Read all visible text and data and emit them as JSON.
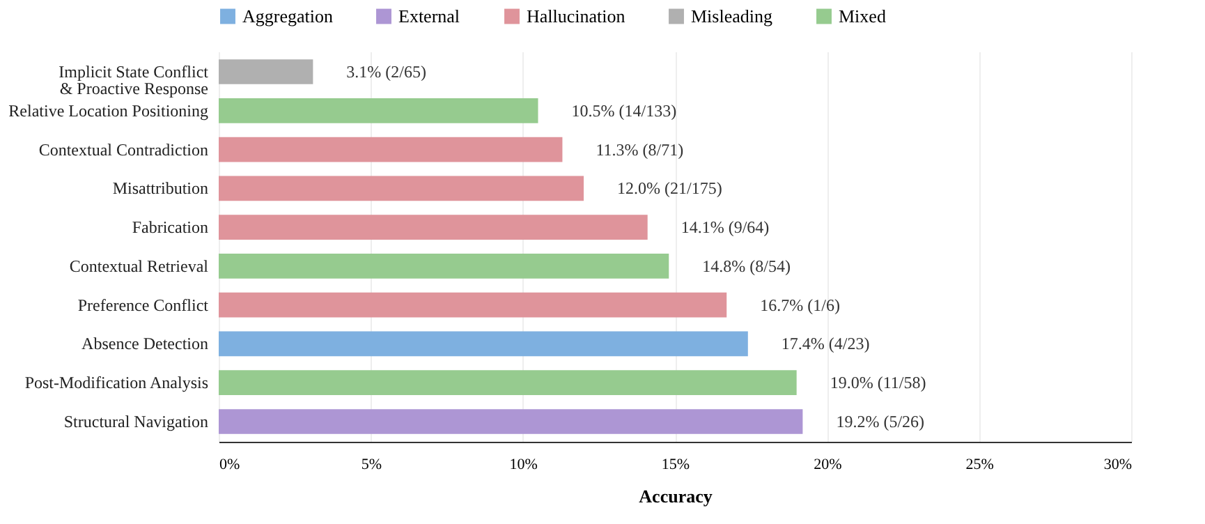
{
  "chart_data": {
    "type": "bar",
    "orientation": "horizontal",
    "xlabel": "Accuracy",
    "categories": [
      "Implicit State Conflict\n& Proactive Response",
      "Relative Location Positioning",
      "Contextual Contradiction",
      "Misattribution",
      "Fabrication",
      "Contextual Retrieval",
      "Preference Conflict",
      "Absence Detection",
      "Post-Modification Analysis",
      "Structural Navigation"
    ],
    "series": [
      {
        "name": "Aggregation",
        "color": "#7eb0e0",
        "values": [
          null,
          null,
          null,
          null,
          null,
          null,
          null,
          17.4,
          null,
          null
        ]
      },
      {
        "name": "External",
        "color": "#ad96d4",
        "values": [
          null,
          null,
          null,
          null,
          null,
          null,
          null,
          null,
          null,
          19.2
        ]
      },
      {
        "name": "Hallucination",
        "color": "#df949b",
        "values": [
          null,
          null,
          11.3,
          12.0,
          14.1,
          null,
          16.7,
          null,
          null,
          null
        ]
      },
      {
        "name": "Misleading",
        "color": "#b0b0b0",
        "values": [
          3.1,
          null,
          null,
          null,
          null,
          null,
          null,
          null,
          null,
          null
        ]
      },
      {
        "name": "Mixed",
        "color": "#96cb8f",
        "values": [
          null,
          10.5,
          null,
          null,
          null,
          14.8,
          null,
          null,
          19.0,
          null
        ]
      }
    ],
    "value_labels": [
      "3.1%  (2/65)",
      "10.5%  (14/133)",
      "11.3%  (8/71)",
      "12.0%  (21/175)",
      "14.1%  (9/64)",
      "14.8%  (8/54)",
      "16.7%  (1/6)",
      "17.4%  (4/23)",
      "19.0%  (11/58)",
      "19.2%  (5/26)"
    ],
    "xlim": [
      0,
      30
    ],
    "xticks": [
      {
        "value": 0,
        "label": "0%"
      },
      {
        "value": 5,
        "label": "5%"
      },
      {
        "value": 10,
        "label": "10%"
      },
      {
        "value": 15,
        "label": "15%"
      },
      {
        "value": 20,
        "label": "20%"
      },
      {
        "value": 25,
        "label": "25%"
      },
      {
        "value": 30,
        "label": "30%"
      }
    ],
    "grid": "x",
    "legend": "top"
  }
}
